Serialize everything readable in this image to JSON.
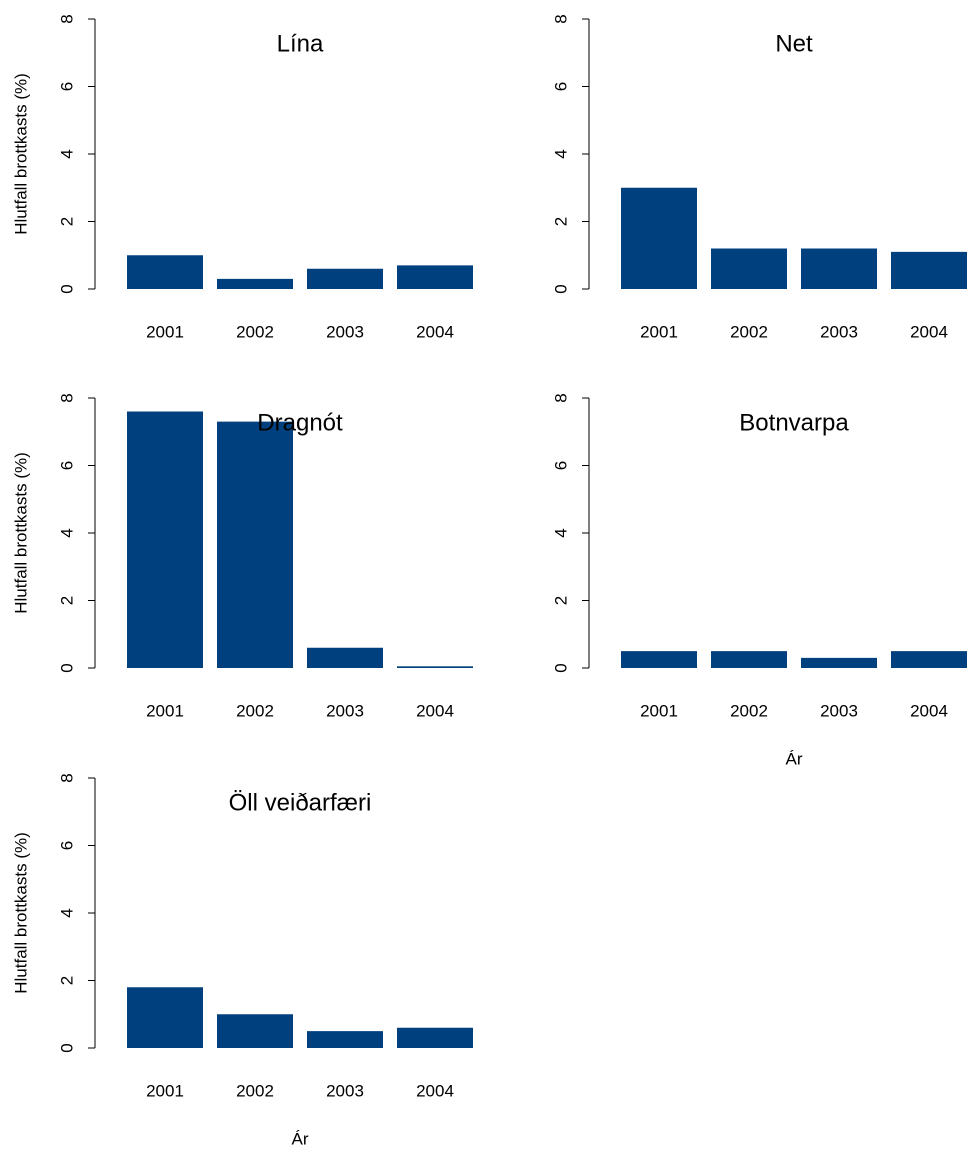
{
  "chart_data": [
    {
      "type": "bar",
      "title": "Lína",
      "ylabel": "Hlutfall brottkasts (%)",
      "categories": [
        "2001",
        "2002",
        "2003",
        "2004"
      ],
      "values": [
        1.0,
        0.3,
        0.6,
        0.7
      ],
      "color": "#00407f",
      "ylim": [
        0,
        8
      ],
      "yticks": [
        0,
        2,
        4,
        6,
        8
      ]
    },
    {
      "type": "bar",
      "title": "Net",
      "categories": [
        "2001",
        "2002",
        "2003",
        "2004"
      ],
      "values": [
        3.0,
        1.2,
        1.2,
        1.1
      ],
      "color": "#00407f",
      "ylim": [
        0,
        8
      ],
      "yticks": [
        0,
        2,
        4,
        6,
        8
      ]
    },
    {
      "type": "bar",
      "title": "Dragnót",
      "ylabel": "Hlutfall brottkasts (%)",
      "categories": [
        "2001",
        "2002",
        "2003",
        "2004"
      ],
      "values": [
        7.6,
        7.3,
        0.6,
        0.05
      ],
      "color": "#00407f",
      "ylim": [
        0,
        8
      ],
      "yticks": [
        0,
        2,
        4,
        6,
        8
      ]
    },
    {
      "type": "bar",
      "title": "Botnvarpa",
      "xlabel": "Ár",
      "categories": [
        "2001",
        "2002",
        "2003",
        "2004"
      ],
      "values": [
        0.5,
        0.5,
        0.3,
        0.5
      ],
      "color": "#00407f",
      "ylim": [
        0,
        8
      ],
      "yticks": [
        0,
        2,
        4,
        6,
        8
      ]
    },
    {
      "type": "bar",
      "title": "Öll veiðarfæri",
      "ylabel": "Hlutfall brottkasts (%)",
      "xlabel": "Ár",
      "categories": [
        "2001",
        "2002",
        "2003",
        "2004"
      ],
      "values": [
        1.8,
        1.0,
        0.5,
        0.6
      ],
      "color": "#00407f",
      "ylim": [
        0,
        8
      ],
      "yticks": [
        0,
        2,
        4,
        6,
        8
      ]
    }
  ]
}
